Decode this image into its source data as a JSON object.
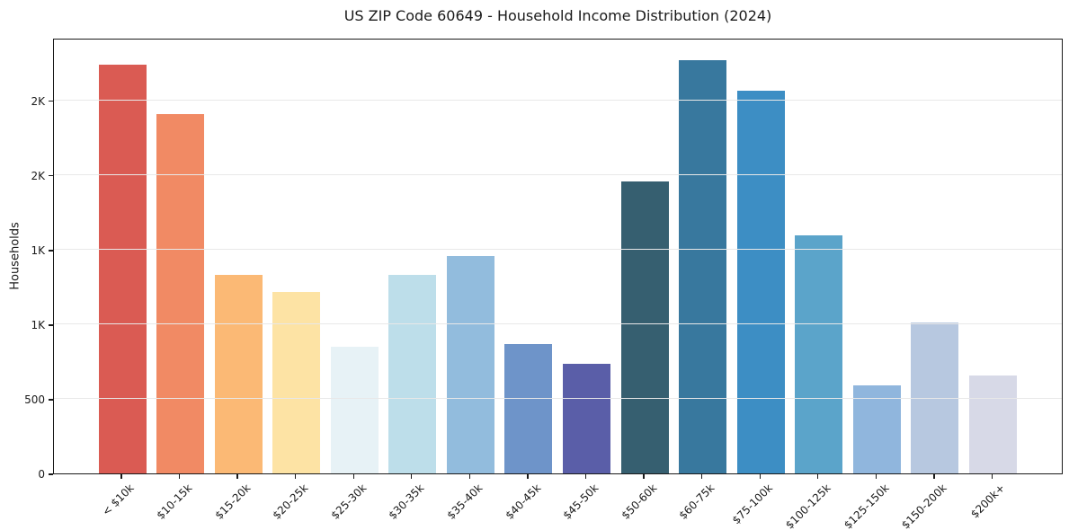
{
  "figure": {
    "title": "US ZIP Code 60649 - Household Income Distribution (2024)",
    "ylabel": "Households"
  },
  "chart_data": {
    "type": "bar",
    "title": "US ZIP Code 60649 - Household Income Distribution (2024)",
    "xlabel": "",
    "ylabel": "Households",
    "categories": [
      "< $10k",
      "$10-15k",
      "$15-20k",
      "$20-25k",
      "$25-30k",
      "$30-35k",
      "$35-40k",
      "$40-45k",
      "$45-50k",
      "$50-60k",
      "$60-75k",
      "$75-100k",
      "$100-125k",
      "$125-150k",
      "$150-200k",
      "$200k+"
    ],
    "values": [
      2740,
      2410,
      1330,
      1215,
      850,
      1330,
      1455,
      870,
      735,
      1955,
      2770,
      2565,
      1595,
      590,
      1010,
      655
    ],
    "bar_colors": [
      "#da5b53",
      "#f18a64",
      "#fbb975",
      "#fde3a4",
      "#e7f2f6",
      "#bddeea",
      "#92bcdd",
      "#6e94c9",
      "#5a5ea8",
      "#365f70",
      "#38789e",
      "#3d8ec4",
      "#5ba4ca",
      "#90b6dd",
      "#b7c8e0",
      "#d7d9e7"
    ],
    "ylim": [
      0,
      2920
    ],
    "y_ticks": [
      {
        "value": 0,
        "label": "0"
      },
      {
        "value": 500,
        "label": "500"
      },
      {
        "value": 1000,
        "label": "1K"
      },
      {
        "value": 1500,
        "label": "1K"
      },
      {
        "value": 2000,
        "label": "2K"
      },
      {
        "value": 2500,
        "label": "2K"
      }
    ],
    "grid": true,
    "grid_axis": "y",
    "legend_position": "none",
    "x_tick_rotation": 45
  },
  "colors": {
    "background": "#ffffff",
    "grid": "#e8e8e8",
    "spine": "#1a1a1a",
    "text": "#1a1a1a"
  }
}
